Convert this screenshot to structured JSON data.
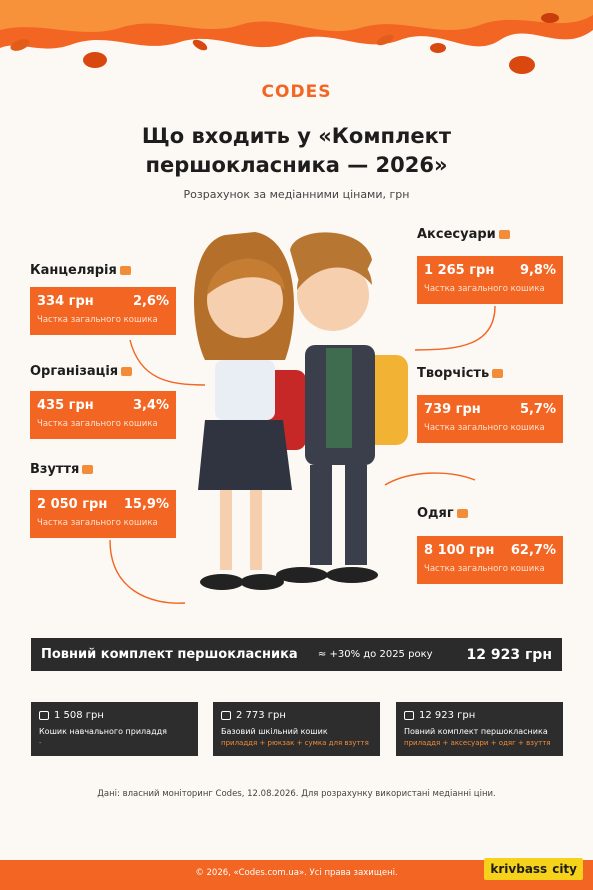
{
  "logo": "CODES",
  "title": [
    "Що входить у «Комплект",
    "першокласника — 2026»"
  ],
  "subtitle": "Розрахунок за медіанними цінами, грн",
  "left": [
    {
      "name": "Канцелярія",
      "price": "334 грн",
      "share": "2,6%",
      "caption": "Частка загального кошика"
    },
    {
      "name": "Організація",
      "price": "435 грн",
      "share": "3,4%",
      "caption": "Частка загального кошика"
    },
    {
      "name": "Взуття",
      "price": "2 050 грн",
      "share": "15,9%",
      "caption": "Частка загального кошика"
    }
  ],
  "right": [
    {
      "name": "Аксесуари",
      "price": "1 265 грн",
      "share": "9,8%",
      "caption": "Частка загального кошика"
    },
    {
      "name": "Творчість",
      "price": "739 грн",
      "share": "5,7%",
      "caption": "Частка загального кошика"
    },
    {
      "name": "Одяг",
      "price": "8 100 грн",
      "share": "62,7%",
      "caption": "Частка загального кошика"
    }
  ],
  "total": {
    "label": "Повний комплект першокласника",
    "change": "≈ +30% до 2025 року",
    "value": "12 923 грн"
  },
  "kits": [
    {
      "price": "1 508 грн",
      "name": "Кошик навчального приладдя",
      "detail": "-"
    },
    {
      "price": "2 773 грн",
      "name": "Базовий шкільний кошик",
      "detail": "приладдя + рюкзак + сумка для взуття"
    },
    {
      "price": "12 923 грн",
      "name": "Повний комплект першокласника",
      "detail": "приладдя + аксесуари + одяг + взуття"
    }
  ],
  "source": "Дані: власний моніторинг Codes, 12.08.2026. Для розрахунку використані медіанні ціни.",
  "footer": "© 2026, «Codes.com.ua». Усі права захищені.",
  "watermark": [
    "krivbass",
    "city"
  ]
}
